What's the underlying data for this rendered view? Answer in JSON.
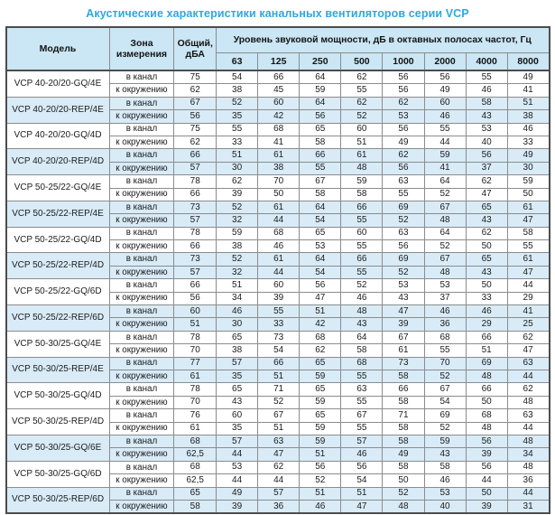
{
  "title": "Акустические характеристики канальных вентиляторов  серии VCP",
  "colors": {
    "title_blue": "#2BA9E0",
    "header_bg": "#CBE6F4",
    "band_bg": "#D8EBF7",
    "grid_line": "#8C8C8C",
    "outer_border": "#4D4D4D"
  },
  "table": {
    "headers": {
      "model": "Модель",
      "zone": "Зона измерения",
      "total": "Общий, дБА",
      "spl": "Уровень звуковой мощности, дБ в октавных полосах частот, Гц",
      "frequencies": [
        "63",
        "125",
        "250",
        "500",
        "1000",
        "2000",
        "4000",
        "8000"
      ]
    },
    "zone_labels": {
      "duct": "в канал",
      "ambient": "к окружению"
    },
    "rows": [
      {
        "model": "VCP 40-20/20-GQ/4E",
        "shaded": false,
        "duct": {
          "total": "75",
          "levels": [
            54,
            66,
            64,
            62,
            56,
            56,
            55,
            49
          ]
        },
        "ambient": {
          "total": "62",
          "levels": [
            38,
            45,
            59,
            55,
            56,
            49,
            46,
            41
          ]
        }
      },
      {
        "model": "VCP 40-20/20-REP/4E",
        "shaded": true,
        "duct": {
          "total": "67",
          "levels": [
            52,
            60,
            64,
            62,
            62,
            60,
            58,
            51
          ]
        },
        "ambient": {
          "total": "56",
          "levels": [
            35,
            42,
            56,
            52,
            53,
            46,
            43,
            38
          ]
        }
      },
      {
        "model": "VCP 40-20/20-GQ/4D",
        "shaded": false,
        "duct": {
          "total": "75",
          "levels": [
            55,
            68,
            65,
            60,
            56,
            55,
            53,
            46
          ]
        },
        "ambient": {
          "total": "62",
          "levels": [
            33,
            41,
            58,
            51,
            49,
            44,
            40,
            33
          ]
        }
      },
      {
        "model": "VCP 40-20/20-REP/4D",
        "shaded": true,
        "duct": {
          "total": "66",
          "levels": [
            51,
            61,
            66,
            61,
            62,
            59,
            56,
            49
          ]
        },
        "ambient": {
          "total": "57",
          "levels": [
            30,
            38,
            55,
            48,
            56,
            41,
            37,
            30
          ]
        }
      },
      {
        "model": "VCP 50-25/22-GQ/4E",
        "shaded": false,
        "duct": {
          "total": "78",
          "levels": [
            62,
            70,
            67,
            59,
            63,
            64,
            62,
            59
          ]
        },
        "ambient": {
          "total": "66",
          "levels": [
            39,
            50,
            58,
            58,
            55,
            52,
            47,
            50
          ]
        }
      },
      {
        "model": "VCP 50-25/22-REP/4E",
        "shaded": true,
        "duct": {
          "total": "73",
          "levels": [
            52,
            61,
            64,
            66,
            69,
            67,
            65,
            61
          ]
        },
        "ambient": {
          "total": "57",
          "levels": [
            32,
            44,
            54,
            55,
            52,
            48,
            43,
            47
          ]
        }
      },
      {
        "model": "VCP 50-25/22-GQ/4D",
        "shaded": false,
        "duct": {
          "total": "78",
          "levels": [
            59,
            68,
            65,
            60,
            63,
            64,
            62,
            58
          ]
        },
        "ambient": {
          "total": "66",
          "levels": [
            38,
            46,
            53,
            55,
            56,
            52,
            50,
            55
          ]
        }
      },
      {
        "model": "VCP 50-25/22-REP/4D",
        "shaded": true,
        "duct": {
          "total": "73",
          "levels": [
            52,
            61,
            64,
            66,
            69,
            67,
            65,
            61
          ]
        },
        "ambient": {
          "total": "57",
          "levels": [
            32,
            44,
            54,
            55,
            52,
            48,
            43,
            47
          ]
        }
      },
      {
        "model": "VCP 50-25/22-GQ/6D",
        "shaded": false,
        "duct": {
          "total": "66",
          "levels": [
            51,
            60,
            56,
            52,
            53,
            53,
            50,
            44
          ]
        },
        "ambient": {
          "total": "56",
          "levels": [
            34,
            39,
            47,
            46,
            43,
            37,
            33,
            29
          ]
        }
      },
      {
        "model": "VCP 50-25/22-REP/6D",
        "shaded": true,
        "duct": {
          "total": "60",
          "levels": [
            46,
            55,
            51,
            48,
            47,
            46,
            46,
            41
          ]
        },
        "ambient": {
          "total": "51",
          "levels": [
            30,
            33,
            42,
            43,
            39,
            36,
            29,
            25
          ]
        }
      },
      {
        "model": "VCP 50-30/25-GQ/4E",
        "shaded": false,
        "duct": {
          "total": "78",
          "levels": [
            65,
            73,
            68,
            64,
            67,
            68,
            66,
            62
          ]
        },
        "ambient": {
          "total": "70",
          "levels": [
            38,
            54,
            62,
            58,
            61,
            55,
            51,
            47
          ]
        }
      },
      {
        "model": "VCP 50-30/25-REP/4E",
        "shaded": true,
        "duct": {
          "total": "77",
          "levels": [
            57,
            66,
            65,
            68,
            73,
            70,
            69,
            63
          ]
        },
        "ambient": {
          "total": "61",
          "levels": [
            35,
            51,
            59,
            55,
            58,
            52,
            48,
            44
          ]
        }
      },
      {
        "model": "VCP 50-30/25-GQ/4D",
        "shaded": false,
        "duct": {
          "total": "78",
          "levels": [
            65,
            71,
            65,
            63,
            66,
            67,
            66,
            62
          ]
        },
        "ambient": {
          "total": "70",
          "levels": [
            43,
            52,
            59,
            55,
            58,
            54,
            50,
            48
          ]
        }
      },
      {
        "model": "VCP 50-30/25-REP/4D",
        "shaded": false,
        "duct": {
          "total": "76",
          "levels": [
            60,
            67,
            65,
            67,
            71,
            69,
            68,
            63
          ]
        },
        "ambient": {
          "total": "61",
          "levels": [
            35,
            51,
            59,
            55,
            58,
            52,
            48,
            44
          ]
        }
      },
      {
        "model": "VCP 50-30/25-GQ/6E",
        "shaded": true,
        "duct": {
          "total": "68",
          "levels": [
            57,
            63,
            59,
            57,
            58,
            59,
            56,
            48
          ]
        },
        "ambient": {
          "total": "62,5",
          "levels": [
            44,
            47,
            51,
            46,
            49,
            43,
            39,
            34
          ]
        }
      },
      {
        "model": "VCP 50-30/25-GQ/6D",
        "shaded": false,
        "duct": {
          "total": "68",
          "levels": [
            53,
            62,
            56,
            56,
            58,
            58,
            56,
            48
          ]
        },
        "ambient": {
          "total": "62,5",
          "levels": [
            44,
            44,
            52,
            54,
            50,
            46,
            44,
            36
          ]
        }
      },
      {
        "model": "VCP 50-30/25-REP/6D",
        "shaded": true,
        "duct": {
          "total": "65",
          "levels": [
            49,
            57,
            51,
            51,
            52,
            53,
            50,
            44
          ]
        },
        "ambient": {
          "total": "58",
          "levels": [
            39,
            36,
            46,
            47,
            48,
            40,
            39,
            31
          ]
        }
      }
    ]
  }
}
